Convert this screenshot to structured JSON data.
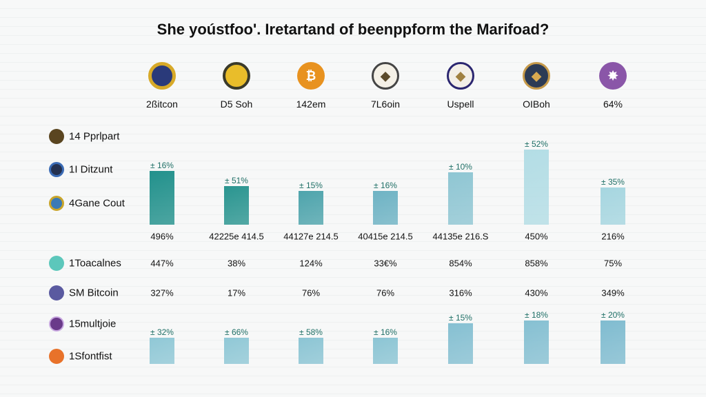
{
  "chart_data": {
    "type": "bar",
    "title": "She yoústfoo'. Iretartand of beenppform the Marifoad?",
    "categories": [
      "2ßitcon",
      "D5 Soh",
      "142em",
      "7L6oin",
      "Uspell",
      "OIBoh",
      "64%"
    ],
    "category_icons": [
      "shield-coin-icon",
      "gold-coin-icon",
      "bitcoin-icon",
      "ethereum-icon",
      "ethereum-purple-icon",
      "ethereum-gold-icon",
      "purple-badge-icon"
    ],
    "row_labels": [
      "14 Pprlpart",
      "1I Ditzunt",
      "4Gane Cout",
      "1Toacalnes",
      "SM Bitcoin",
      "15multjoie",
      "1Sfontfist"
    ],
    "series": [
      {
        "values": [
          72,
          51,
          45,
          45,
          70,
          100,
          50
        ],
        "labels": [
          "± 16%",
          "± 51%",
          "± 15%",
          "± 16%",
          "± 10%",
          "± 52%",
          "± 35%"
        ],
        "colors": [
          "#22918c",
          "#2a9590",
          "#4ea4ac",
          "#6eb3c4",
          "#8fc6d3",
          "#b3dde5",
          "#a6d6e0"
        ]
      },
      {
        "values": [
          35,
          35,
          35,
          35,
          54,
          58,
          58
        ],
        "labels": [
          "± 32%",
          "± 66%",
          "± 58%",
          "± 16%",
          "± 15%",
          "± 18%",
          "± 20%"
        ],
        "colors": [
          "#90c8d6",
          "#90c8d6",
          "#8cc5d4",
          "#8cc5d4",
          "#86c0d2",
          "#86c0d2",
          "#80bcd0"
        ]
      }
    ],
    "table_rows": [
      [
        "496%",
        "42225e 414.5",
        "44127e 214.5",
        "40415e 214.5",
        "44135e 216.S",
        "450%",
        "216%"
      ],
      [
        "447%",
        "38%",
        "124%",
        "33€%",
        "854%",
        "858%",
        "75%"
      ],
      [
        "327%",
        "17%",
        "76%",
        "76%",
        "316%",
        "430%",
        "349%"
      ]
    ],
    "colors": {
      "accent": "#22918c",
      "label": "#1f6f66"
    }
  }
}
